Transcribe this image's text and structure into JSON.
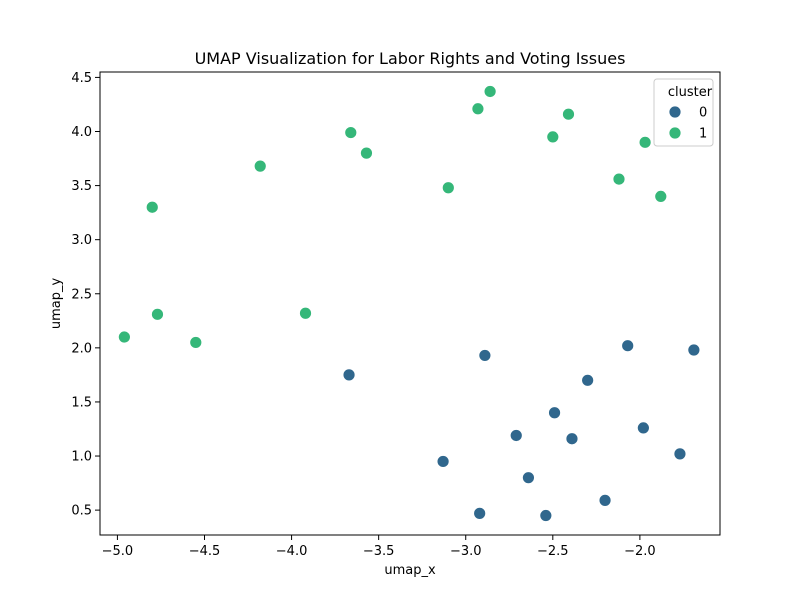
{
  "chart_data": {
    "type": "scatter",
    "title": "UMAP Visualization for Labor Rights and Voting Issues",
    "xlabel": "umap_x",
    "ylabel": "umap_y",
    "xlim": [
      -5.1,
      -1.54
    ],
    "ylim": [
      0.27,
      4.55
    ],
    "x_ticks": [
      -5.0,
      -4.5,
      -4.0,
      -3.5,
      -3.0,
      -2.5,
      -2.0
    ],
    "x_tick_labels": [
      "−5.0",
      "−4.5",
      "−4.0",
      "−3.5",
      "−3.0",
      "−2.5",
      "−2.0"
    ],
    "y_ticks": [
      0.5,
      1.0,
      1.5,
      2.0,
      2.5,
      3.0,
      3.5,
      4.0,
      4.5
    ],
    "y_tick_labels": [
      "0.5",
      "1.0",
      "1.5",
      "2.0",
      "2.5",
      "3.0",
      "3.5",
      "4.0",
      "4.5"
    ],
    "grid": false,
    "legend": {
      "title": "cluster",
      "placement": "top-right"
    },
    "series": [
      {
        "name": "0",
        "color": "#30678d",
        "points": [
          {
            "x": -3.67,
            "y": 1.75
          },
          {
            "x": -2.89,
            "y": 1.93
          },
          {
            "x": -2.07,
            "y": 2.02
          },
          {
            "x": -1.69,
            "y": 1.98
          },
          {
            "x": -2.3,
            "y": 1.7
          },
          {
            "x": -2.49,
            "y": 1.4
          },
          {
            "x": -2.71,
            "y": 1.19
          },
          {
            "x": -2.39,
            "y": 1.16
          },
          {
            "x": -1.98,
            "y": 1.26
          },
          {
            "x": -1.77,
            "y": 1.02
          },
          {
            "x": -3.13,
            "y": 0.95
          },
          {
            "x": -2.64,
            "y": 0.8
          },
          {
            "x": -2.2,
            "y": 0.59
          },
          {
            "x": -2.92,
            "y": 0.47
          },
          {
            "x": -2.54,
            "y": 0.45
          }
        ]
      },
      {
        "name": "1",
        "color": "#35b779",
        "points": [
          {
            "x": -2.86,
            "y": 4.37
          },
          {
            "x": -2.93,
            "y": 4.21
          },
          {
            "x": -2.41,
            "y": 4.16
          },
          {
            "x": -3.66,
            "y": 3.99
          },
          {
            "x": -2.5,
            "y": 3.95
          },
          {
            "x": -1.97,
            "y": 3.9
          },
          {
            "x": -3.57,
            "y": 3.8
          },
          {
            "x": -4.18,
            "y": 3.68
          },
          {
            "x": -2.12,
            "y": 3.56
          },
          {
            "x": -3.1,
            "y": 3.48
          },
          {
            "x": -1.88,
            "y": 3.4
          },
          {
            "x": -4.8,
            "y": 3.3
          },
          {
            "x": -3.92,
            "y": 2.32
          },
          {
            "x": -4.77,
            "y": 2.31
          },
          {
            "x": -4.96,
            "y": 2.1
          },
          {
            "x": -4.55,
            "y": 2.05
          }
        ]
      }
    ]
  }
}
